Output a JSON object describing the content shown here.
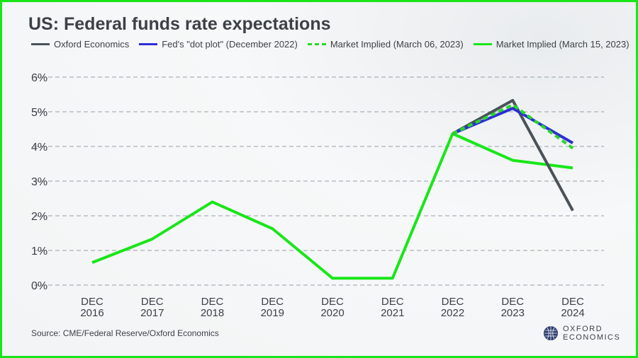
{
  "title": "US: Federal funds rate expectations",
  "source": "Source: CME/Federal Reserve/Oxford Economics",
  "logo": {
    "line1": "OXFORD",
    "line2": "ECONOMICS"
  },
  "chart_data": {
    "type": "line",
    "title": "US: Federal funds rate expectations",
    "categories": [
      "DEC 2016",
      "DEC 2017",
      "DEC 2018",
      "DEC 2019",
      "DEC 2020",
      "DEC 2021",
      "DEC 2022",
      "DEC 2023",
      "DEC 2024"
    ],
    "ylim": [
      0,
      6
    ],
    "yticks": [
      "0%",
      "1%",
      "2%",
      "3%",
      "4%",
      "5%",
      "6%"
    ],
    "grid": true,
    "legend_position": "top",
    "series": [
      {
        "name": "Oxford Economics",
        "color": "#4a5259",
        "dash": false,
        "values": [
          null,
          null,
          null,
          null,
          null,
          null,
          4.37,
          5.33,
          2.15
        ]
      },
      {
        "name": "Fed's \"dot plot\" (December 2022)",
        "color": "#2b2fd6",
        "dash": false,
        "values": [
          null,
          null,
          null,
          null,
          null,
          null,
          4.37,
          5.1,
          4.1
        ]
      },
      {
        "name": "Market Implied (March 06, 2023)",
        "color": "#27d827",
        "dash": true,
        "values": [
          null,
          null,
          null,
          null,
          null,
          null,
          4.37,
          5.2,
          3.95
        ]
      },
      {
        "name": "Market Implied (March 15, 2023)",
        "color": "#19e619",
        "dash": false,
        "values": [
          0.65,
          1.33,
          2.4,
          1.63,
          0.2,
          0.2,
          4.37,
          3.6,
          3.38
        ]
      }
    ]
  }
}
